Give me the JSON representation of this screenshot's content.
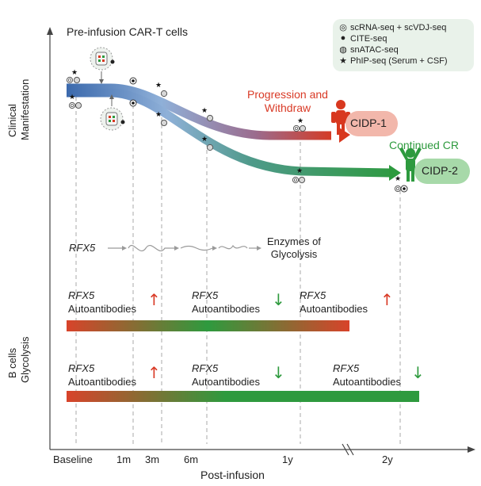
{
  "title": "Pre-infusion CAR-T cells",
  "legend": {
    "items": [
      {
        "symbol": "double-ring",
        "label": "scRNA-seq + scVDJ-seq"
      },
      {
        "symbol": "dot",
        "label": "CITE-seq"
      },
      {
        "symbol": "hatched-circle",
        "label": "snATAC-seq"
      },
      {
        "symbol": "star",
        "label": "PhIP-seq (Serum + CSF)"
      }
    ]
  },
  "y_axis": {
    "upper_label": [
      "Clinical",
      "Manifestation"
    ],
    "lower_label": [
      "B cells",
      "Glycolysis"
    ]
  },
  "x_axis": {
    "title": "Post-infusion",
    "ticks": [
      "Baseline",
      "1m",
      "3m",
      "6m",
      "1y",
      "2y"
    ]
  },
  "patients": [
    {
      "id": "CIDP-1",
      "outcome": [
        "Progression and",
        "Withdraw"
      ],
      "color": "#d93a26"
    },
    {
      "id": "CIDP-2",
      "outcome": [
        "Continued CR"
      ],
      "color": "#2e9a3e"
    }
  ],
  "pathway": {
    "gene": "RFX5",
    "product": [
      "Enzymes of",
      "Glycolysis"
    ]
  },
  "bars": [
    {
      "annotations": [
        {
          "gene": "RFX5",
          "label": "Autoantibodies",
          "trend": "up",
          "arrow": "↑"
        },
        {
          "gene": "RFX5",
          "label": "Autoantibodies",
          "trend": "down",
          "arrow": "↓"
        },
        {
          "gene": "RFX5",
          "label": "Autoantibodies",
          "trend": "up",
          "arrow": "↑"
        }
      ]
    },
    {
      "annotations": [
        {
          "gene": "RFX5",
          "label": "Autoantibodies",
          "trend": "up",
          "arrow": "↑"
        },
        {
          "gene": "RFX5",
          "label": "Autoantibodies",
          "trend": "down",
          "arrow": "↓"
        },
        {
          "gene": "RFX5",
          "label": "Autoantibodies",
          "trend": "down",
          "arrow": "↓"
        }
      ]
    }
  ],
  "colors": {
    "up": "#d93a26",
    "down": "#2e9a3e",
    "blue": "#3f6fb0",
    "legend_bg": "#e9f2ea"
  }
}
